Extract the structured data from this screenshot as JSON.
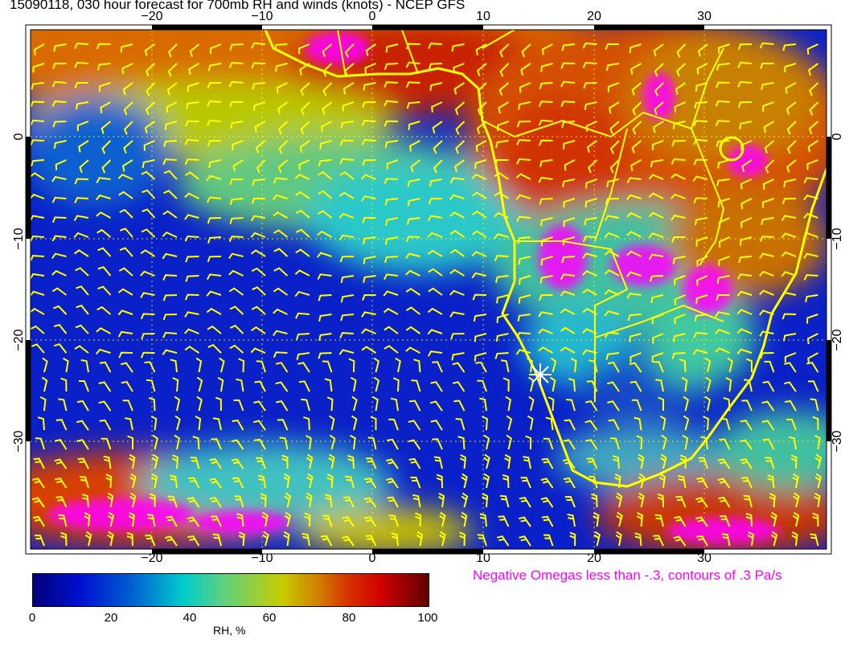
{
  "title": "15090118, 030 hour forecast for 700mb RH and winds (knots) - NCEP GFS",
  "lon_ticks": [
    "−20",
    "−10",
    "0",
    "10",
    "20",
    "30"
  ],
  "lat_ticks": [
    "0",
    "−10",
    "−20",
    "−30"
  ],
  "colorbar": {
    "ticks": [
      "0",
      "20",
      "40",
      "60",
      "80",
      "100"
    ],
    "label": "RH, %",
    "range": [
      0,
      100
    ]
  },
  "omega_note": "Negative Omegas less than -.3, contours of .3 Pa/s",
  "colors": {
    "wind_barbs": "#ffff00",
    "coastlines": "#ffff00",
    "omega_contours": "#ff00ff",
    "grid": "#ffff00"
  }
}
